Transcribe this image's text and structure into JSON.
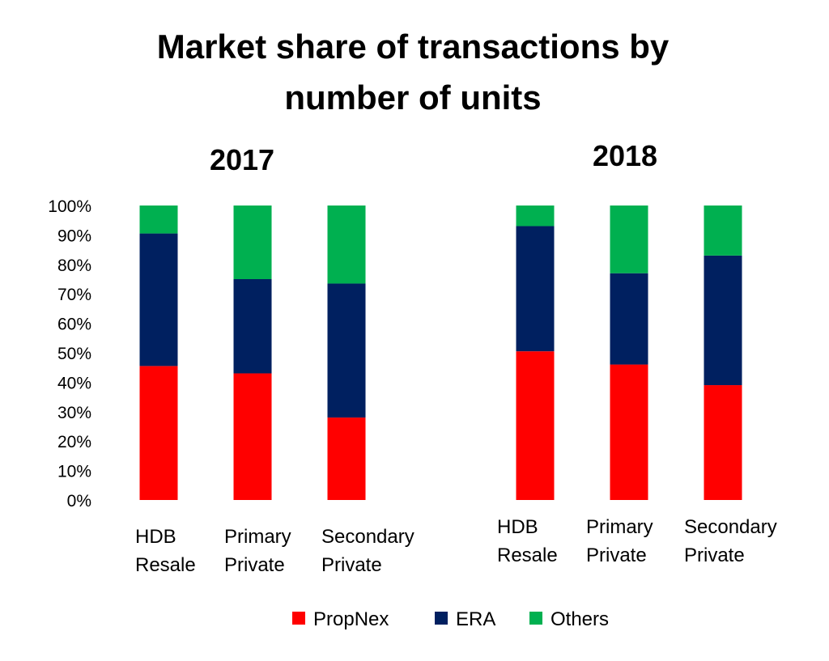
{
  "title_lines": [
    "Market share of transactions by",
    "number of units"
  ],
  "colors": {
    "PropNex": "#ff0000",
    "ERA": "#002060",
    "Others": "#00b050"
  },
  "chart_data": {
    "type": "bar",
    "stacked": true,
    "title": "Market share of transactions by number of units",
    "ylim": [
      0,
      100
    ],
    "yticks": [
      "0%",
      "10%",
      "20%",
      "30%",
      "40%",
      "50%",
      "60%",
      "70%",
      "80%",
      "90%",
      "100%"
    ],
    "legend": {
      "position": "bottom",
      "entries": [
        "PropNex",
        "ERA",
        "Others"
      ]
    },
    "grid": false,
    "panels": [
      {
        "title": "2017",
        "categories": [
          [
            "HDB",
            "Resale"
          ],
          [
            "Primary",
            "Private"
          ],
          [
            "Secondary",
            "Private"
          ]
        ],
        "series": [
          {
            "name": "PropNex",
            "values": [
              45.5,
              43,
              28
            ]
          },
          {
            "name": "ERA",
            "values": [
              45,
              32,
              45.5
            ]
          },
          {
            "name": "Others",
            "values": [
              9.5,
              25,
              26.5
            ]
          }
        ]
      },
      {
        "title": "2018",
        "categories": [
          [
            "HDB",
            "Resale"
          ],
          [
            "Primary",
            "Private"
          ],
          [
            "Secondary",
            "Private"
          ]
        ],
        "series": [
          {
            "name": "PropNex",
            "values": [
              50.5,
              46,
              39
            ]
          },
          {
            "name": "ERA",
            "values": [
              42.5,
              31,
              44
            ]
          },
          {
            "name": "Others",
            "values": [
              7,
              23,
              17
            ]
          }
        ]
      }
    ]
  }
}
